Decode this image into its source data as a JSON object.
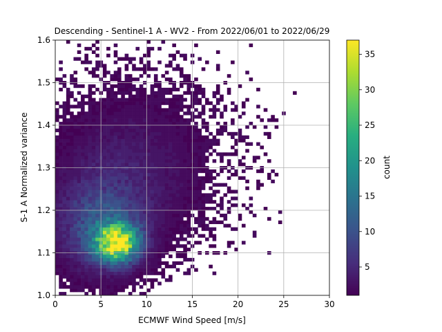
{
  "chart_data": {
    "type": "heatmap",
    "title": "Descending - Sentinel-1 A - WV2 - From 2022/06/01 to 2022/06/29",
    "xlabel": "ECMWF Wind Speed [m/s]",
    "ylabel": "S-1 A Normalized variance",
    "xlim": [
      0,
      30
    ],
    "ylim": [
      1.0,
      1.6
    ],
    "xticks": [
      0,
      5,
      10,
      15,
      20,
      25,
      30
    ],
    "xtick_labels": [
      "0",
      "5",
      "10",
      "15",
      "20",
      "25",
      "30"
    ],
    "yticks": [
      1.0,
      1.1,
      1.2,
      1.3,
      1.4,
      1.5,
      1.6
    ],
    "ytick_labels": [
      "1.0",
      "1.1",
      "1.2",
      "1.3",
      "1.4",
      "1.5",
      "1.6"
    ],
    "grid": true,
    "colormap": "viridis",
    "colorbar": {
      "label": "count",
      "range": [
        1,
        37
      ],
      "ticks": [
        5,
        10,
        15,
        20,
        25,
        30,
        35
      ],
      "tick_labels": [
        "5",
        "10",
        "15",
        "20",
        "25",
        "30",
        "35"
      ]
    },
    "bin_width": [
      0.4,
      0.008
    ],
    "density_components": [
      {
        "x": 6.8,
        "y": 1.125,
        "sx": 1.6,
        "sy": 0.03,
        "peak": 34
      },
      {
        "x": 4.8,
        "y": 1.16,
        "sx": 3.0,
        "sy": 0.07,
        "peak": 9
      },
      {
        "x": 7.5,
        "y": 1.26,
        "sx": 5.0,
        "sy": 0.1,
        "peak": 3.0
      },
      {
        "x": 9.0,
        "y": 1.36,
        "sx": 6.0,
        "sy": 0.12,
        "peak": 1.3
      }
    ],
    "sparse_points": [
      [
        1.4,
        1.595
      ],
      [
        2.6,
        1.575
      ],
      [
        4.2,
        1.57
      ],
      [
        3.3,
        1.56
      ],
      [
        6.5,
        1.56
      ],
      [
        7.8,
        1.555
      ],
      [
        10.2,
        1.545
      ],
      [
        12.5,
        1.54
      ],
      [
        9.4,
        1.535
      ],
      [
        16.1,
        1.53
      ],
      [
        13.9,
        1.52
      ],
      [
        18.8,
        1.515
      ],
      [
        21.3,
        1.505
      ],
      [
        14.6,
        1.5
      ],
      [
        20.1,
        1.495
      ],
      [
        17.6,
        1.49
      ],
      [
        22.4,
        1.485
      ],
      [
        19.2,
        1.475
      ],
      [
        26.4,
        1.475
      ],
      [
        21.0,
        1.46
      ],
      [
        23.2,
        1.44
      ],
      [
        20.7,
        1.43
      ],
      [
        22.1,
        1.42
      ],
      [
        23.8,
        1.41
      ],
      [
        24.0,
        1.4
      ],
      [
        21.6,
        1.395
      ],
      [
        20.3,
        1.385
      ],
      [
        22.8,
        1.38
      ],
      [
        23.4,
        1.375
      ],
      [
        19.6,
        1.365
      ],
      [
        22.6,
        1.35
      ],
      [
        21.2,
        1.34
      ],
      [
        23.0,
        1.335
      ],
      [
        22.3,
        1.325
      ],
      [
        21.8,
        1.315
      ],
      [
        20.4,
        1.305
      ],
      [
        22.0,
        1.295
      ],
      [
        19.9,
        1.285
      ],
      [
        21.1,
        1.27
      ],
      [
        22.5,
        1.26
      ],
      [
        20.9,
        1.25
      ],
      [
        19.5,
        1.24
      ],
      [
        20.6,
        1.21
      ],
      [
        19.1,
        1.2
      ],
      [
        18.5,
        1.19
      ],
      [
        20.2,
        1.18
      ],
      [
        17.9,
        1.175
      ],
      [
        18.8,
        1.165
      ],
      [
        17.2,
        1.15
      ],
      [
        16.3,
        1.14
      ],
      [
        15.6,
        1.12
      ],
      [
        14.7,
        1.11
      ],
      [
        13.5,
        1.1
      ],
      [
        12.4,
        1.09
      ],
      [
        11.6,
        1.08
      ],
      [
        1.1,
        1.06
      ],
      [
        0.8,
        1.04
      ],
      [
        1.6,
        1.02
      ],
      [
        3.5,
        1.035
      ],
      [
        4.1,
        1.045
      ],
      [
        3.2,
        1.02
      ],
      [
        0.3,
        1.145
      ],
      [
        0.6,
        1.165
      ],
      [
        1.4,
        1.08
      ],
      [
        2.1,
        1.07
      ],
      [
        5.1,
        1.055
      ],
      [
        6.2,
        1.06
      ],
      [
        8.4,
        1.065
      ],
      [
        9.1,
        1.075
      ],
      [
        10.4,
        1.08
      ],
      [
        12.1,
        1.1
      ],
      [
        13.0,
        1.115
      ],
      [
        0.4,
        1.26
      ],
      [
        0.7,
        1.3
      ],
      [
        0.9,
        1.36
      ],
      [
        1.2,
        1.44
      ],
      [
        0.5,
        1.48
      ],
      [
        1.8,
        1.5
      ],
      [
        2.2,
        1.52
      ],
      [
        5.2,
        1.53
      ],
      [
        8.6,
        1.51
      ],
      [
        11.3,
        1.49
      ],
      [
        15.4,
        1.47
      ],
      [
        17.1,
        1.45
      ],
      [
        18.3,
        1.42
      ]
    ]
  }
}
